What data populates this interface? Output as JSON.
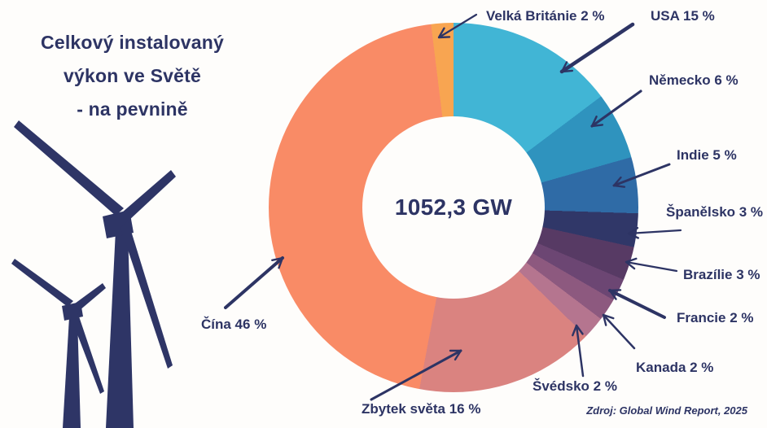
{
  "title": {
    "lines": [
      "Celkový instalovaný",
      "výkon ve Světě",
      "- na pevnině"
    ]
  },
  "source": "Zdroj: Global Wind Report, 2025",
  "colors": {
    "text_navy": "#2d3464",
    "background": "#fefdfb",
    "turbine": "#2e3566"
  },
  "chart_data": {
    "type": "pie",
    "style": "donut",
    "title": "Celkový instalovaný výkon ve Světě - na pevnině",
    "center_label": "1052,3 GW",
    "unit": "%",
    "rotation_deg": -7,
    "legend_position": "around",
    "slices": [
      {
        "name": "Velká Británie",
        "value": 2,
        "color": "#f8a551",
        "display": "Velká Británie 2 %"
      },
      {
        "name": "USA",
        "value": 15,
        "color": "#41b5d5",
        "display": "USA 15 %"
      },
      {
        "name": "Německo",
        "value": 6,
        "color": "#2f93be",
        "display": "Německo 6 %"
      },
      {
        "name": "Indie",
        "value": 5,
        "color": "#2f6ba6",
        "display": "Indie 5 %"
      },
      {
        "name": "Španělsko",
        "value": 3,
        "color": "#303768",
        "display": "Španělsko 3 %"
      },
      {
        "name": "Brazílie",
        "value": 3,
        "color": "#573a64",
        "display": "Brazílie 3 %"
      },
      {
        "name": "Francie",
        "value": 2,
        "color": "#6c4673",
        "display": "Francie 2 %"
      },
      {
        "name": "Kanada",
        "value": 2,
        "color": "#8d597f",
        "display": "Kanada 2 %"
      },
      {
        "name": "Švédsko",
        "value": 2,
        "color": "#b5758f",
        "display": "Švédsko 2 %"
      },
      {
        "name": "Zbytek světa",
        "value": 16,
        "color": "#da8380",
        "display": "Zbytek světa 16 %"
      },
      {
        "name": "Čína",
        "value": 46,
        "color": "#f98b66",
        "display": "Čína 46 %"
      }
    ]
  }
}
